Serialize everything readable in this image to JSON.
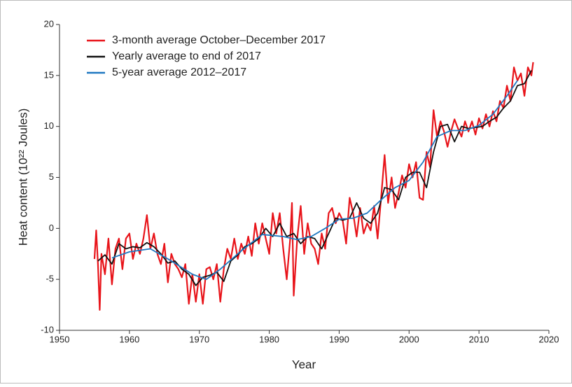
{
  "chart_data": {
    "type": "line",
    "xlabel": "Year",
    "ylabel": "Heat content (10²² Joules)",
    "xlim": [
      1950,
      2020
    ],
    "xticks": [
      1950,
      1960,
      1970,
      1980,
      1990,
      2000,
      2010,
      2020
    ],
    "ylim": [
      -10,
      20
    ],
    "yticks": [
      -10,
      -5,
      0,
      5,
      10,
      15,
      20
    ],
    "grid": false,
    "legend": "upper left",
    "series": [
      {
        "name": "3-month average October–December 2017",
        "color": "#e8141a",
        "x": [
          1955.0,
          1955.25,
          1955.5,
          1955.75,
          1956.0,
          1956.5,
          1957.0,
          1957.5,
          1958.0,
          1958.5,
          1959.0,
          1959.5,
          1960.0,
          1960.5,
          1961.0,
          1961.5,
          1962.0,
          1962.5,
          1963.0,
          1963.5,
          1964.0,
          1964.5,
          1965.0,
          1965.5,
          1966.0,
          1966.5,
          1967.0,
          1967.5,
          1968.0,
          1968.5,
          1969.0,
          1969.5,
          1970.0,
          1970.5,
          1971.0,
          1971.5,
          1972.0,
          1972.5,
          1973.0,
          1973.5,
          1974.0,
          1974.5,
          1975.0,
          1975.5,
          1976.0,
          1976.5,
          1977.0,
          1977.5,
          1978.0,
          1978.5,
          1979.0,
          1979.5,
          1980.0,
          1980.5,
          1981.0,
          1981.5,
          1982.0,
          1982.5,
          1983.0,
          1983.25,
          1983.5,
          1984.0,
          1984.5,
          1985.0,
          1985.5,
          1986.0,
          1986.5,
          1987.0,
          1987.5,
          1988.0,
          1988.5,
          1989.0,
          1989.5,
          1990.0,
          1990.5,
          1991.0,
          1991.5,
          1992.0,
          1992.5,
          1993.0,
          1993.5,
          1994.0,
          1994.5,
          1995.0,
          1995.5,
          1996.0,
          1996.5,
          1997.0,
          1997.5,
          1998.0,
          1998.5,
          1999.0,
          1999.5,
          2000.0,
          2000.5,
          2001.0,
          2001.5,
          2002.0,
          2002.5,
          2003.0,
          2003.5,
          2004.0,
          2004.5,
          2005.0,
          2005.5,
          2006.0,
          2006.5,
          2007.0,
          2007.5,
          2008.0,
          2008.5,
          2009.0,
          2009.5,
          2010.0,
          2010.5,
          2011.0,
          2011.5,
          2012.0,
          2012.5,
          2013.0,
          2013.5,
          2014.0,
          2014.5,
          2015.0,
          2015.5,
          2016.0,
          2016.5,
          2017.0,
          2017.5,
          2017.75
        ],
        "values": [
          -3.0,
          -0.2,
          -3.5,
          -8.0,
          -2.5,
          -4.5,
          -1.0,
          -5.5,
          -2.0,
          -1.0,
          -4.0,
          -1.0,
          -0.5,
          -3.0,
          -1.5,
          -2.5,
          -1.0,
          1.3,
          -2.0,
          -0.5,
          -2.5,
          -3.5,
          -1.5,
          -5.3,
          -2.5,
          -3.5,
          -4.0,
          -4.8,
          -3.5,
          -7.4,
          -4.5,
          -7.2,
          -4.5,
          -7.4,
          -4.0,
          -3.8,
          -5.0,
          -3.5,
          -7.2,
          -4.0,
          -2.0,
          -3.0,
          -1.0,
          -3.0,
          -1.5,
          -2.5,
          -0.8,
          -2.7,
          0.5,
          -1.5,
          0.5,
          -1.0,
          -2.5,
          1.5,
          -0.5,
          1.5,
          -2.0,
          -5.0,
          -1.0,
          2.5,
          -6.6,
          -1.0,
          2.2,
          -2.5,
          0.5,
          -1.5,
          -2.0,
          -3.5,
          -0.5,
          -2.0,
          1.5,
          2.0,
          0.5,
          1.5,
          0.8,
          -1.5,
          3.0,
          1.5,
          -0.8,
          2.0,
          -0.5,
          0.5,
          -0.2,
          2.2,
          -1.0,
          3.0,
          7.2,
          2.5,
          5.0,
          2.0,
          3.5,
          5.2,
          4.0,
          6.3,
          5.0,
          6.5,
          3.0,
          2.8,
          7.5,
          6.0,
          11.6,
          9.0,
          10.5,
          9.5,
          8.0,
          9.5,
          10.7,
          9.8,
          9.0,
          10.5,
          9.5,
          10.5,
          9.2,
          10.8,
          9.8,
          11.2,
          10.0,
          11.5,
          10.5,
          12.5,
          11.8,
          14.0,
          12.5,
          15.8,
          14.5,
          15.2,
          13.0,
          15.8,
          15.0,
          16.3
        ]
      },
      {
        "name": "Yearly average to end of 2017",
        "color": "#111111",
        "x": [
          1955.5,
          1956.5,
          1957.5,
          1958.5,
          1959.5,
          1960.5,
          1961.5,
          1962.5,
          1963.5,
          1964.5,
          1965.5,
          1966.5,
          1967.5,
          1968.5,
          1969.5,
          1970.5,
          1971.5,
          1972.5,
          1973.5,
          1974.5,
          1975.5,
          1976.5,
          1977.5,
          1978.5,
          1979.5,
          1980.5,
          1981.5,
          1982.5,
          1983.5,
          1984.5,
          1985.5,
          1986.5,
          1987.5,
          1988.5,
          1989.5,
          1990.5,
          1991.5,
          1992.5,
          1993.5,
          1994.5,
          1995.5,
          1996.5,
          1997.5,
          1998.5,
          1999.5,
          2000.5,
          2001.5,
          2002.5,
          2003.5,
          2004.5,
          2005.5,
          2006.5,
          2007.5,
          2008.5,
          2009.5,
          2010.5,
          2011.5,
          2012.5,
          2013.5,
          2014.5,
          2015.5,
          2016.5,
          2017.5
        ],
        "values": [
          -3.2,
          -2.6,
          -3.5,
          -1.5,
          -2.0,
          -1.8,
          -1.9,
          -1.4,
          -1.8,
          -2.5,
          -3.4,
          -3.2,
          -4.0,
          -4.5,
          -5.6,
          -4.8,
          -4.6,
          -4.3,
          -5.2,
          -3.2,
          -2.6,
          -1.8,
          -1.5,
          -1.0,
          0.0,
          -0.8,
          0.5,
          -0.8,
          -0.5,
          -1.5,
          -0.8,
          -1.0,
          -2.0,
          -0.5,
          1.0,
          0.8,
          1.0,
          2.5,
          1.0,
          0.5,
          1.5,
          4.0,
          3.8,
          2.8,
          5.0,
          5.5,
          5.5,
          4.0,
          7.5,
          10.0,
          10.2,
          8.5,
          10.0,
          9.8,
          9.9,
          10.0,
          10.5,
          10.9,
          11.8,
          12.5,
          14.0,
          14.2,
          15.5
        ]
      },
      {
        "name": "5-year average 2012–2017",
        "color": "#1f78c1",
        "x": [
          1957.5,
          1960,
          1963,
          1966,
          1969,
          1971,
          1973,
          1976,
          1979,
          1982,
          1984,
          1986,
          1988,
          1990,
          1992,
          1994,
          1996,
          1998,
          2000,
          2002,
          2004,
          2006,
          2008,
          2010,
          2012,
          2014,
          2015.5
        ],
        "values": [
          -2.9,
          -2.3,
          -2.0,
          -3.2,
          -4.5,
          -5.0,
          -4.0,
          -2.2,
          -0.6,
          -0.8,
          -1.1,
          -0.8,
          0.0,
          0.9,
          1.0,
          1.5,
          2.8,
          4.0,
          4.7,
          6.5,
          9.0,
          9.6,
          9.6,
          10.1,
          11.2,
          13.0,
          14.5
        ]
      }
    ]
  }
}
